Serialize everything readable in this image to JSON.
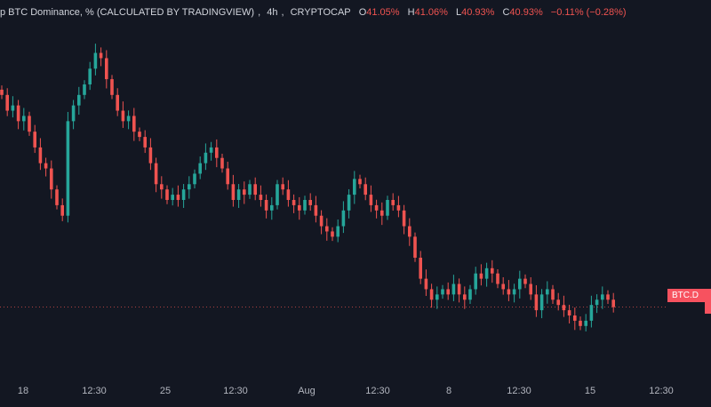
{
  "header": {
    "symbol": "p BTC Dominance, % (CALCULATED BY TRADINGVIEW)",
    "interval": "4h",
    "exchange": "CRYPTOCAP",
    "open_label": "O",
    "open": "41.05%",
    "high_label": "H",
    "high": "41.06%",
    "low_label": "L",
    "low": "40.93%",
    "close_label": "C",
    "close": "40.93%",
    "change": "−0.11% (−0.28%)"
  },
  "price_tag": "BTC.D",
  "colors": {
    "background": "#131722",
    "up": "#26a69a",
    "down": "#ef5350",
    "tag": "#f7525f"
  },
  "chart_data": {
    "type": "candlestick",
    "x_ticks": [
      "18",
      "12:30",
      "25",
      "12:30",
      "Aug",
      "12:30",
      "8",
      "12:30",
      "15",
      "12:30"
    ],
    "last_value": 40.93,
    "ylim": [
      40.3,
      43.6
    ],
    "closes": [
      42.95,
      42.8,
      42.85,
      42.7,
      42.75,
      42.6,
      42.45,
      42.3,
      42.25,
      42.05,
      41.9,
      41.8,
      42.7,
      42.85,
      42.95,
      43.05,
      43.2,
      43.35,
      43.3,
      43.1,
      42.95,
      42.8,
      42.7,
      42.75,
      42.6,
      42.55,
      42.45,
      42.3,
      42.1,
      42.05,
      41.95,
      42.0,
      41.95,
      42.05,
      42.1,
      42.2,
      42.3,
      42.4,
      42.45,
      42.35,
      42.25,
      42.1,
      41.95,
      42.05,
      42.0,
      42.1,
      42.0,
      41.95,
      41.85,
      41.9,
      42.1,
      42.05,
      41.95,
      41.9,
      41.85,
      41.95,
      41.9,
      41.8,
      41.7,
      41.65,
      41.6,
      41.7,
      41.85,
      42.0,
      42.15,
      42.1,
      42.0,
      41.9,
      41.85,
      41.8,
      41.95,
      41.9,
      41.85,
      41.7,
      41.6,
      41.4,
      41.2,
      41.1,
      41.0,
      41.05,
      41.1,
      41.05,
      41.15,
      41.05,
      41.0,
      41.1,
      41.25,
      41.2,
      41.3,
      41.25,
      41.15,
      41.1,
      41.05,
      41.1,
      41.2,
      41.15,
      41.05,
      40.9,
      41.05,
      41.1,
      41.0,
      40.95,
      40.9,
      40.85,
      40.8,
      40.75,
      40.8,
      40.95,
      41.0,
      41.05,
      41.0,
      40.93
    ]
  },
  "x_axis": {
    "ticks": [
      {
        "label": "18"
      },
      {
        "label": "12:30"
      },
      {
        "label": "25"
      },
      {
        "label": "12:30"
      },
      {
        "label": "Aug"
      },
      {
        "label": "12:30"
      },
      {
        "label": "8"
      },
      {
        "label": "12:30"
      },
      {
        "label": "15"
      },
      {
        "label": "12:30"
      }
    ]
  }
}
